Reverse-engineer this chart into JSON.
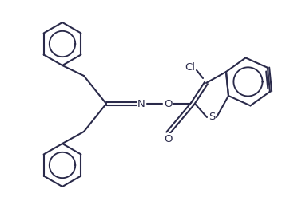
{
  "bg_color": "#ffffff",
  "line_color": "#2a2a4a",
  "line_width": 1.5,
  "font_size": 9.5,
  "fig_width": 3.73,
  "fig_height": 2.67,
  "dpi": 100,
  "atoms": {
    "N_label": "N",
    "O1_label": "O",
    "O2_label": "O",
    "S_label": "S",
    "Cl_label": "Cl"
  }
}
